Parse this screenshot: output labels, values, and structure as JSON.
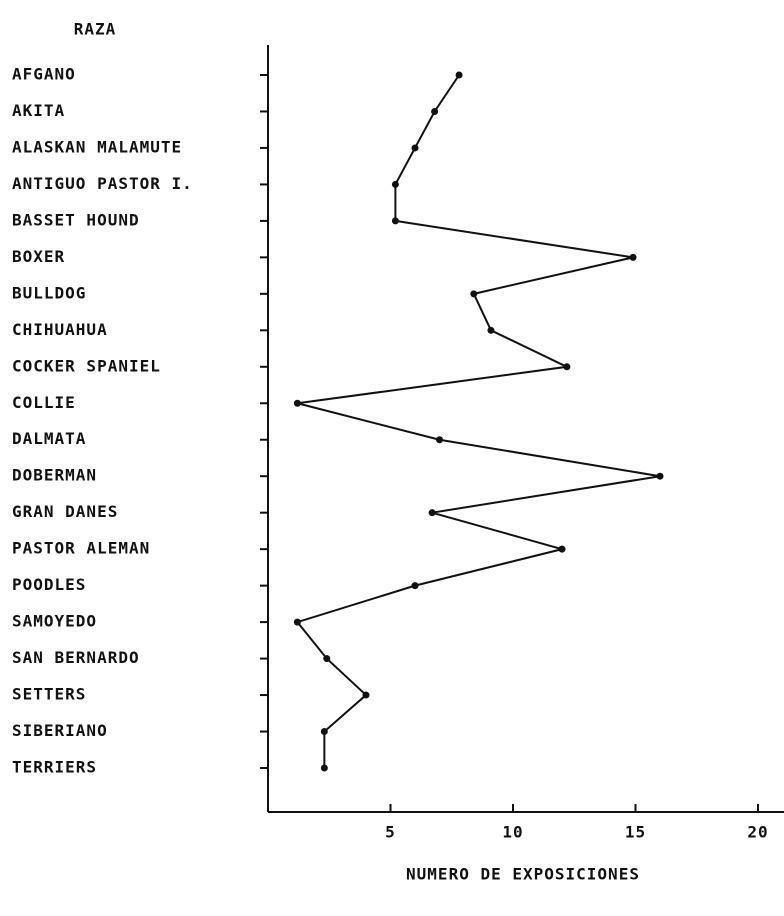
{
  "chart_data": {
    "type": "line",
    "orientation": "horizontal",
    "title": "RAZA",
    "x_label": "NUMERO DE EXPOSICIONES",
    "categories": [
      "AFGANO",
      "AKITA",
      "ALASKAN MALAMUTE",
      "ANTIGUO PASTOR I.",
      "BASSET  HOUND",
      "BOXER",
      "BULLDOG",
      "CHIHUAHUA",
      "COCKER SPANIEL",
      "COLLIE",
      "DALMATA",
      "DOBERMAN",
      "GRAN DANES",
      "PASTOR ALEMAN",
      "POODLES",
      "SAMOYEDO",
      "SAN BERNARDO",
      "SETTERS",
      "SIBERIANO",
      "TERRIERS"
    ],
    "values": [
      7.8,
      6.8,
      6.0,
      5.2,
      5.2,
      14.9,
      8.4,
      9.1,
      12.2,
      1.2,
      7.0,
      16.0,
      6.7,
      12.0,
      6.0,
      1.2,
      2.4,
      4.0,
      2.3,
      2.3
    ],
    "color": "#111111",
    "xlim": [
      0,
      21
    ],
    "xticks": [
      5,
      10,
      15,
      20
    ],
    "grid": false
  }
}
